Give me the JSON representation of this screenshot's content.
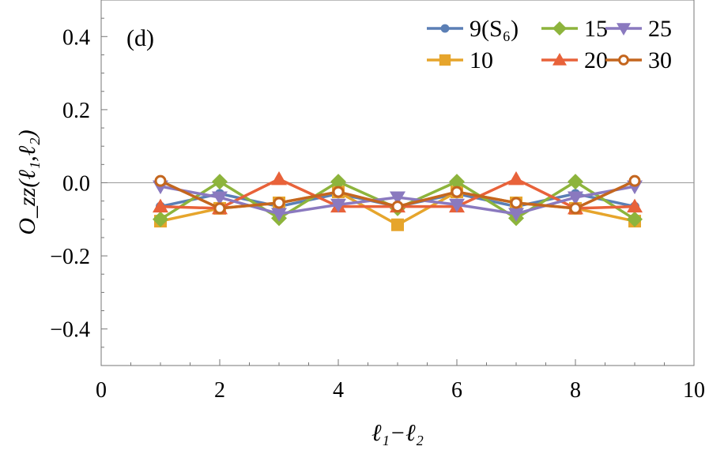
{
  "chart_data": {
    "type": "line",
    "panel_label": "(d)",
    "xlabel": "ℓ₁−ℓ₂",
    "ylabel": "O_zz(ℓ₁,ℓ₂)",
    "xlim": [
      0,
      10
    ],
    "ylim": [
      -0.5,
      0.5
    ],
    "x_ticks": [
      "0",
      "2",
      "4",
      "6",
      "8",
      "10"
    ],
    "y_ticks": [
      "−0.4",
      "−0.2",
      "0.0",
      "0.2",
      "0.4"
    ],
    "grid": false,
    "zero_line": true,
    "legend_position": "top-right",
    "x": [
      1,
      2,
      3,
      4,
      5,
      6,
      7,
      8,
      9
    ],
    "series": [
      {
        "name": "9(S₆)",
        "color": "#5b7fb5",
        "marker": "circle",
        "values": [
          -0.065,
          -0.03,
          -0.065,
          -0.03,
          -0.065,
          -0.03,
          -0.065,
          -0.03,
          -0.065
        ]
      },
      {
        "name": "10",
        "color": "#e6a52c",
        "marker": "square",
        "values": [
          -0.105,
          -0.07,
          -0.055,
          -0.025,
          -0.115,
          -0.025,
          -0.055,
          -0.07,
          -0.105
        ]
      },
      {
        "name": "15",
        "color": "#8db43c",
        "marker": "diamond",
        "values": [
          -0.1,
          0.003,
          -0.097,
          0.003,
          -0.07,
          0.003,
          -0.097,
          0.003,
          -0.1
        ]
      },
      {
        "name": "20",
        "color": "#e8623a",
        "marker": "triangle-up",
        "values": [
          -0.065,
          -0.07,
          0.01,
          -0.065,
          -0.065,
          -0.065,
          0.01,
          -0.07,
          -0.065
        ]
      },
      {
        "name": "25",
        "color": "#8a79bf",
        "marker": "triangle-down",
        "values": [
          -0.01,
          -0.04,
          -0.085,
          -0.06,
          -0.04,
          -0.06,
          -0.085,
          -0.04,
          -0.01
        ]
      },
      {
        "name": "30",
        "color": "#c4661e",
        "marker": "open-circle",
        "values": [
          0.005,
          -0.07,
          -0.055,
          -0.025,
          -0.065,
          -0.025,
          -0.055,
          -0.07,
          0.005
        ]
      }
    ]
  }
}
